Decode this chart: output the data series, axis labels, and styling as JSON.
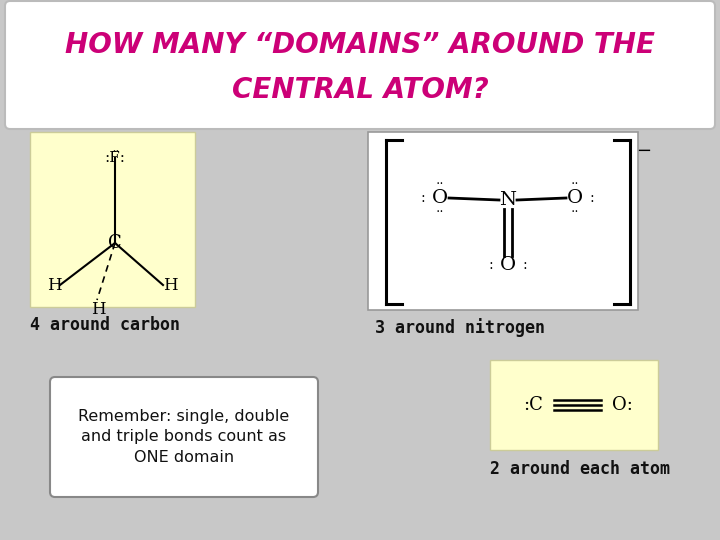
{
  "bg_color": "#c8c8c8",
  "title_box_color": "#ffffff",
  "title_line1": "HOW MANY “DOMAINS” AROUND THE",
  "title_line2": "CENTRAL ATOM?",
  "title_color": "#cc0077",
  "ch3f_bg": "#ffffcc",
  "no3_bg": "#ffffff",
  "co2_bg": "#ffffcc",
  "rem_bg": "#ffffff",
  "label_color": "#111111",
  "label_4": "4 around carbon",
  "label_3": "3 around nitrogen",
  "label_2": "2 around each atom",
  "remember": "Remember: single, double\nand triple bonds count as\nONE domain"
}
